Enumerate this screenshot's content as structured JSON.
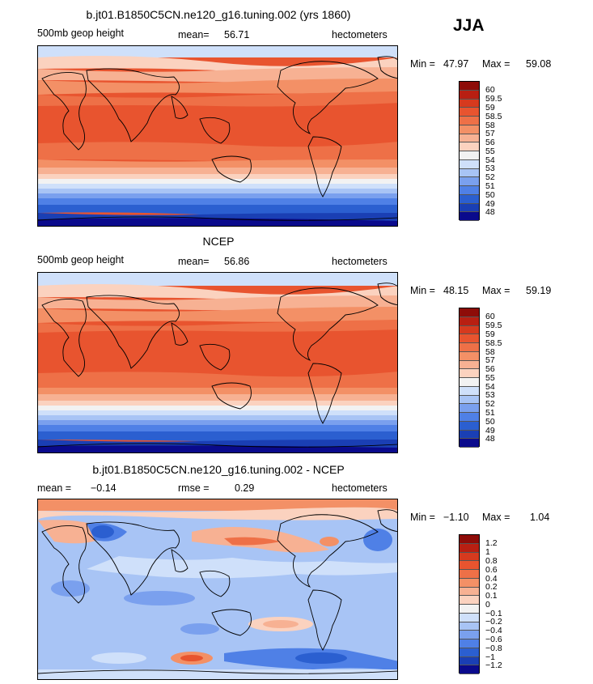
{
  "season": "JJA",
  "colors": {
    "abs": [
      "#0a0a8c",
      "#1a3fb4",
      "#2b5fd0",
      "#4f80e6",
      "#7aa0ee",
      "#a8c4f5",
      "#cfe0fa",
      "#f2f2f2",
      "#fbd2bf",
      "#f7b193",
      "#f39066",
      "#ee7047",
      "#e8542f",
      "#d63a1e",
      "#b81f12",
      "#8e0c08"
    ],
    "diff": [
      "#0a0a8c",
      "#1a3fb4",
      "#2b5fd0",
      "#4f80e6",
      "#7aa0ee",
      "#a8c4f5",
      "#cfe0fa",
      "#f2f2f2",
      "#fbd2bf",
      "#f7b193",
      "#f39066",
      "#ee7047",
      "#e8542f",
      "#d63a1e",
      "#b81f12",
      "#8e0c08"
    ]
  },
  "chart_data": [
    {
      "type": "heatmap",
      "title": "b.jt01.B1850C5CN.ne120_g16.tuning.002 (yrs 1860)",
      "variable": "500mb geop height",
      "units": "hectometers",
      "stat_label": "mean=",
      "stat_value": "56.71",
      "min_label": "Min =",
      "min_value": "47.97",
      "max_label": "Max =",
      "max_value": "59.08",
      "levels": [
        "60",
        "59.5",
        "59",
        "58.5",
        "58",
        "57",
        "56",
        "55",
        "54",
        "53",
        "52",
        "51",
        "50",
        "49",
        "48"
      ]
    },
    {
      "type": "heatmap",
      "title": "NCEP",
      "variable": "500mb geop height",
      "units": "hectometers",
      "stat_label": "mean=",
      "stat_value": "56.86",
      "min_label": "Min =",
      "min_value": "48.15",
      "max_label": "Max =",
      "max_value": "59.19",
      "levels": [
        "60",
        "59.5",
        "59",
        "58.5",
        "58",
        "57",
        "56",
        "55",
        "54",
        "53",
        "52",
        "51",
        "50",
        "49",
        "48"
      ]
    },
    {
      "type": "heatmap",
      "title": "b.jt01.B1850C5CN.ne120_g16.tuning.002 - NCEP",
      "mean_label": "mean =",
      "mean_value": "−0.14",
      "rmse_label": "rmse =",
      "rmse_value": "0.29",
      "units": "hectometers",
      "min_label": "Min =",
      "min_value": "−1.10",
      "max_label": "Max =",
      "max_value": "1.04",
      "levels": [
        "1.2",
        "1",
        "0.8",
        "0.6",
        "0.4",
        "0.2",
        "0.1",
        "0",
        "−0.1",
        "−0.2",
        "−0.4",
        "−0.6",
        "−0.8",
        "−1",
        "−1.2"
      ]
    }
  ]
}
